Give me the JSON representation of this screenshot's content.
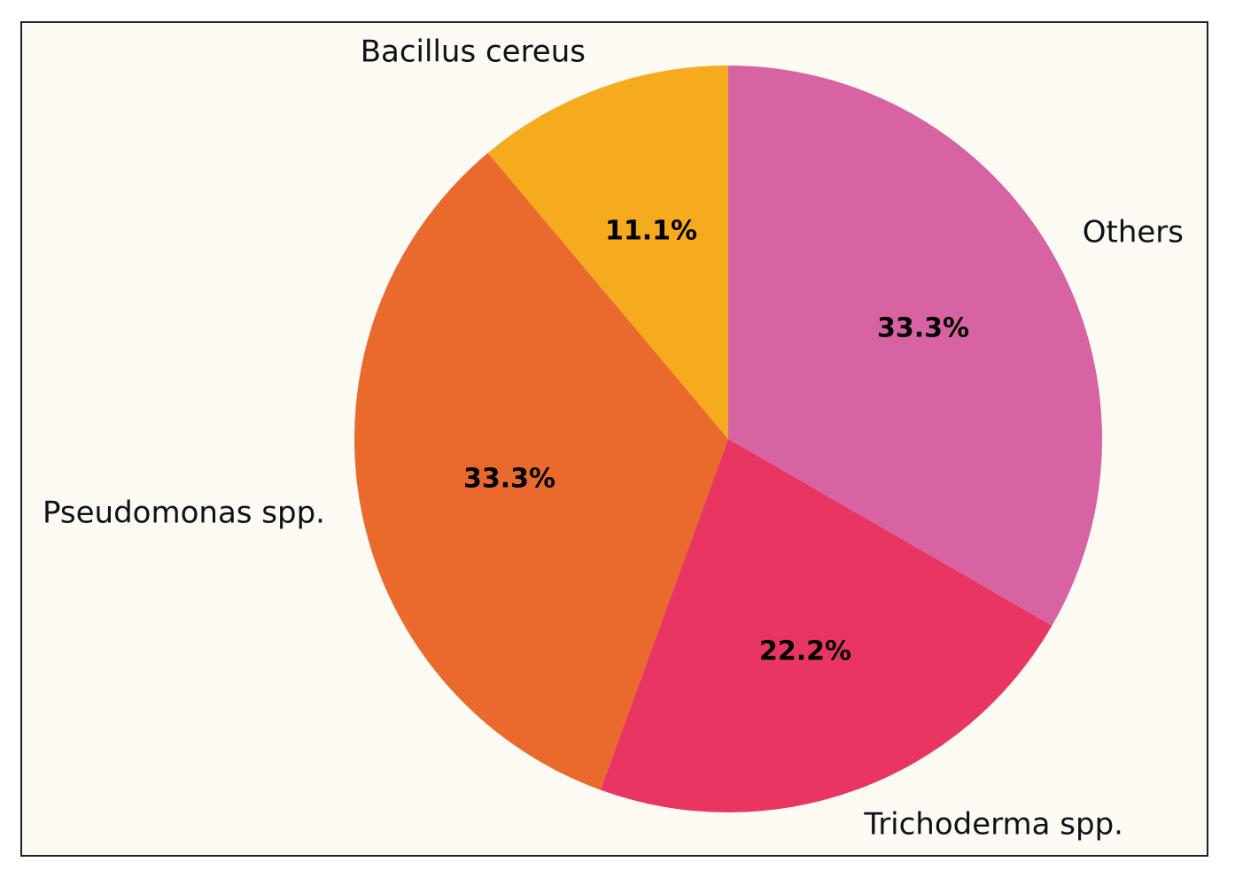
{
  "chart_data": {
    "type": "pie",
    "slices": [
      {
        "label": "Others",
        "value": 33.3,
        "value_label": "33.3%",
        "color": "#d763a3"
      },
      {
        "label": "Trichoderma spp.",
        "value": 22.2,
        "value_label": "22.2%",
        "color": "#e83561"
      },
      {
        "label": "Pseudomonas spp.",
        "value": 33.3,
        "value_label": "33.3%",
        "color": "#ea6a2e"
      },
      {
        "label": "Bacillus cereus",
        "value": 11.1,
        "value_label": "11.1%",
        "color": "#f6ab1e"
      }
    ],
    "start": "12 o'clock",
    "direction": "clockwise",
    "legend": "none"
  },
  "colors": {
    "background": "#fdfaf4",
    "border": "#222222"
  }
}
